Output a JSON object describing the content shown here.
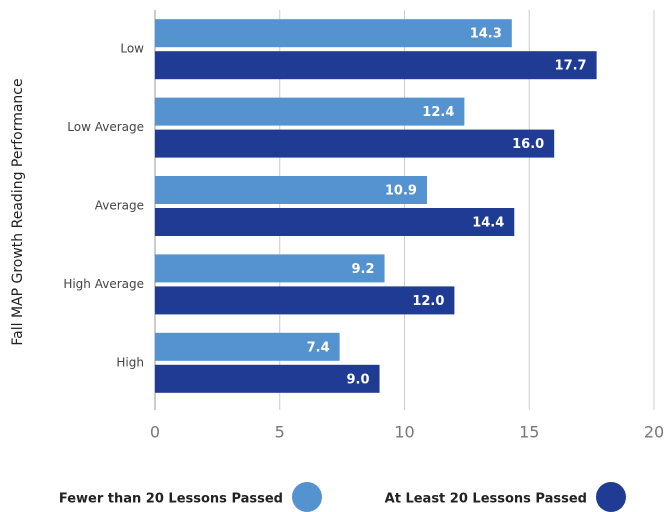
{
  "chart_data": {
    "type": "bar",
    "orientation": "horizontal",
    "y_axis_label": "Fall MAP Growth Reading Performance",
    "categories": [
      "Low",
      "Low Average",
      "Average",
      "High Average",
      "High"
    ],
    "series": [
      {
        "name": "Fewer than 20 Lessons Passed",
        "color": "#5592d0",
        "values": [
          14.3,
          12.4,
          10.9,
          9.2,
          7.4
        ],
        "value_labels": [
          "14.3",
          "12.4",
          "10.9",
          "9.2",
          "7.4"
        ]
      },
      {
        "name": "At Least 20 Lessons Passed",
        "color": "#1f3b94",
        "values": [
          17.7,
          16.0,
          14.4,
          12.0,
          9.0
        ],
        "value_labels": [
          "17.7",
          "16.0",
          "14.4",
          "12.0",
          "9.0"
        ]
      }
    ],
    "xlim": [
      0,
      20
    ],
    "xticks": [
      0,
      5,
      10,
      15,
      20
    ],
    "grid": true,
    "legend": "bottom"
  }
}
